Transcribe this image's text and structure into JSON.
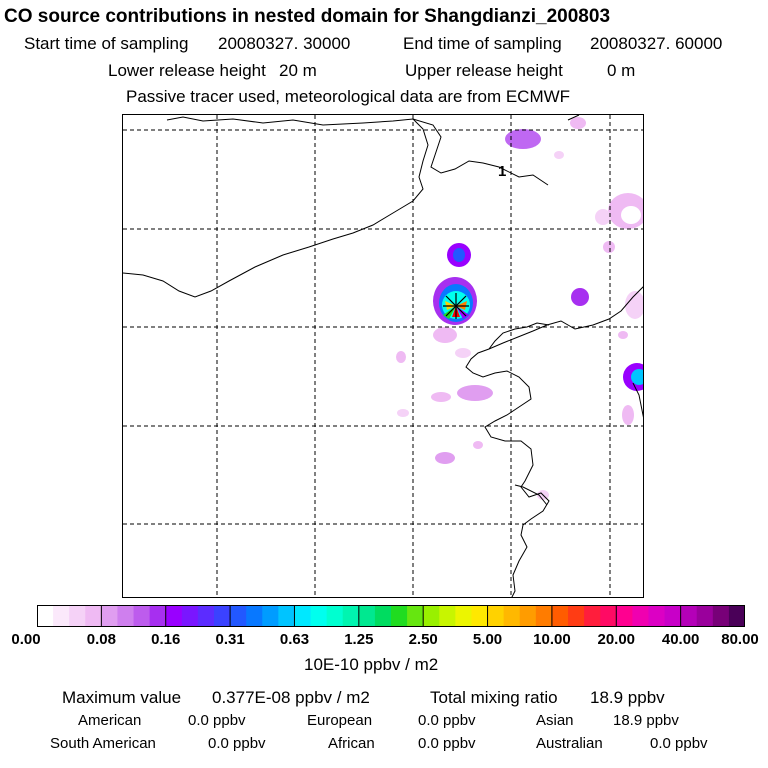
{
  "title": "CO  source contributions in nested domain for Shangdianzi_200803",
  "header": {
    "start_label": "Start time of sampling",
    "start_value": "20080327. 30000",
    "end_label": "End time of sampling",
    "end_value": "20080327. 60000",
    "lower_label": "Lower release height",
    "lower_value": "20 m",
    "upper_label": "Upper release height",
    "upper_value": "0 m",
    "note": "Passive tracer used, meteorological data are from ECMWF"
  },
  "map": {
    "label_1": "1"
  },
  "colorbar": {
    "ticks": [
      "0.00",
      "0.08",
      "0.16",
      "0.31",
      "0.63",
      "1.25",
      "2.50",
      "5.00",
      "10.00",
      "20.00",
      "40.00",
      "80.00"
    ],
    "colors": [
      "#ffffff",
      "#fbe9fb",
      "#f5d2f7",
      "#efbaf3",
      "#e09ef0",
      "#cf7fee",
      "#bd5ced",
      "#a72ff0",
      "#9900ff",
      "#7a16ff",
      "#5c2cff",
      "#3b42ff",
      "#2258ff",
      "#0878ff",
      "#009cff",
      "#00c4ff",
      "#00e8ff",
      "#00ffee",
      "#00ffd0",
      "#00f5b0",
      "#00e890",
      "#00dc60",
      "#20dc20",
      "#66e610",
      "#99f000",
      "#c8f500",
      "#ecf500",
      "#ffe800",
      "#ffd200",
      "#ffb800",
      "#ff9c00",
      "#ff7c00",
      "#ff5c00",
      "#ff3c14",
      "#ff1e3c",
      "#ff0a64",
      "#ff0090",
      "#f000b0",
      "#dc00c4",
      "#c800c8",
      "#b400b8",
      "#9a009c",
      "#780078",
      "#4a0058"
    ],
    "unit": "10E-10 ppbv / m2"
  },
  "summary": {
    "max_label": "Maximum value",
    "max_value": "0.377E-08 ppbv / m2",
    "total_label": "Total mixing ratio",
    "total_value": "18.9 ppbv",
    "american_label": "American",
    "american_value": "0.0 ppbv",
    "european_label": "European",
    "european_value": "0.0 ppbv",
    "asian_label": "Asian",
    "asian_value": "18.9 ppbv",
    "south_american_label": "South American",
    "south_american_value": "0.0 ppbv",
    "african_label": "African",
    "african_value": "0.0 ppbv",
    "australian_label": "Australian",
    "australian_value": "0.0 ppbv"
  }
}
